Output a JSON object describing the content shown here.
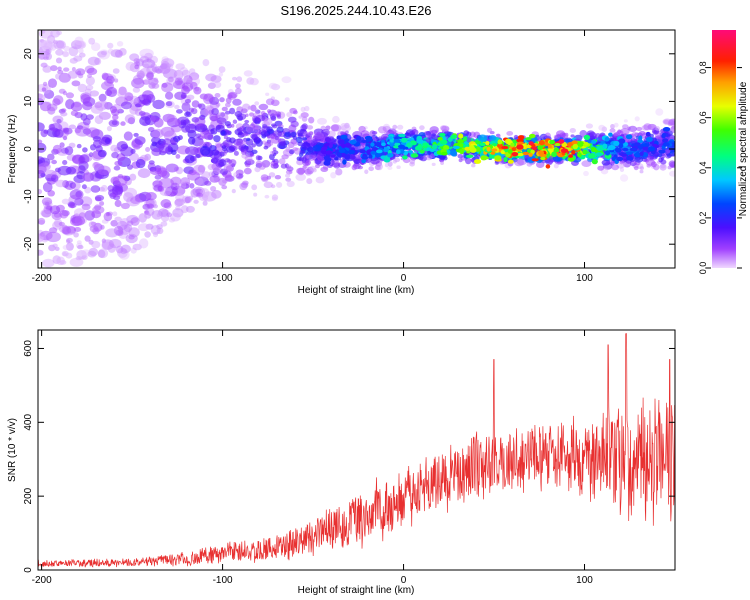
{
  "title": "S196.2025.244.10.43.E26",
  "colors": {
    "snr_line": "#e83030",
    "scatter_low": "#6a0dff",
    "axis": "#000000"
  },
  "chart_data": [
    {
      "type": "heatmap",
      "title": "S196.2025.244.10.43.E26",
      "xlabel": "Height of straight line (km)",
      "ylabel": "Frequency (Hz)",
      "xlim": [
        -202,
        150
      ],
      "ylim": [
        -25,
        25
      ],
      "xticks": [
        -200,
        -100,
        0,
        100
      ],
      "xtick_labels": [
        "-200",
        "-100",
        "0",
        "100"
      ],
      "yticks": [
        -20,
        -10,
        0,
        10,
        20
      ],
      "ytick_labels": [
        "-20",
        "-10",
        "0",
        "10",
        "20"
      ],
      "colorbar": {
        "label": "Normalized spectral amplitude",
        "range": [
          0,
          0.95
        ],
        "ticks": [
          0,
          0.2,
          0.4,
          0.6,
          0.8
        ],
        "tick_labels": [
          "0.0",
          "0.2",
          "0.4",
          "0.6",
          "0.8"
        ],
        "colormap": "rainbow (purple-blue-cyan-green-yellow-red-magenta)"
      },
      "band_profile": [
        {
          "x": -200,
          "center": 0,
          "halfwidth": 25,
          "amplitude": 0.12
        },
        {
          "x": -150,
          "center": 0,
          "halfwidth": 22,
          "amplitude": 0.14
        },
        {
          "x": -120,
          "center": 2,
          "halfwidth": 15,
          "amplitude": 0.16
        },
        {
          "x": -100,
          "center": 2,
          "halfwidth": 12,
          "amplitude": 0.18
        },
        {
          "x": -70,
          "center": 2,
          "halfwidth": 10,
          "amplitude": 0.18
        },
        {
          "x": -45,
          "center": 0,
          "halfwidth": 5,
          "amplitude": 0.22
        },
        {
          "x": -20,
          "center": 0,
          "halfwidth": 4,
          "amplitude": 0.28
        },
        {
          "x": 0,
          "center": 1,
          "halfwidth": 3,
          "amplitude": 0.4
        },
        {
          "x": 30,
          "center": 0.5,
          "halfwidth": 3,
          "amplitude": 0.55
        },
        {
          "x": 60,
          "center": 0,
          "halfwidth": 2.5,
          "amplitude": 0.8
        },
        {
          "x": 90,
          "center": 0,
          "halfwidth": 2.5,
          "amplitude": 0.8
        },
        {
          "x": 120,
          "center": 0,
          "halfwidth": 4,
          "amplitude": 0.3
        },
        {
          "x": 150,
          "center": 1,
          "halfwidth": 5,
          "amplitude": 0.25
        }
      ]
    },
    {
      "type": "line",
      "xlabel": "Height of straight line (km)",
      "ylabel": "SNR (10 * v/v)",
      "xlim": [
        -202,
        150
      ],
      "ylim": [
        0,
        650
      ],
      "xticks": [
        -200,
        -100,
        0,
        100
      ],
      "xtick_labels": [
        "-200",
        "-100",
        "0",
        "100"
      ],
      "yticks": [
        0,
        200,
        400,
        600
      ],
      "ytick_labels": [
        "0",
        "200",
        "400",
        "600"
      ],
      "series": [
        {
          "name": "SNR",
          "envelope": [
            {
              "x": -202,
              "mean": 18,
              "spread": 10
            },
            {
              "x": -150,
              "mean": 20,
              "spread": 12
            },
            {
              "x": -120,
              "mean": 30,
              "spread": 20
            },
            {
              "x": -100,
              "mean": 45,
              "spread": 30
            },
            {
              "x": -80,
              "mean": 55,
              "spread": 35
            },
            {
              "x": -60,
              "mean": 70,
              "spread": 45
            },
            {
              "x": -40,
              "mean": 110,
              "spread": 70
            },
            {
              "x": -20,
              "mean": 150,
              "spread": 90
            },
            {
              "x": 0,
              "mean": 190,
              "spread": 80
            },
            {
              "x": 20,
              "mean": 240,
              "spread": 90
            },
            {
              "x": 40,
              "mean": 280,
              "spread": 100
            },
            {
              "x": 60,
              "mean": 300,
              "spread": 90
            },
            {
              "x": 80,
              "mean": 310,
              "spread": 100
            },
            {
              "x": 100,
              "mean": 300,
              "spread": 120
            },
            {
              "x": 120,
              "mean": 310,
              "spread": 160
            },
            {
              "x": 140,
              "mean": 300,
              "spread": 190
            },
            {
              "x": 150,
              "mean": 300,
              "spread": 200
            }
          ],
          "peaks": [
            {
              "x": 50,
              "y": 570
            },
            {
              "x": 113,
              "y": 610
            },
            {
              "x": 123,
              "y": 640
            },
            {
              "x": 147,
              "y": 570
            }
          ]
        }
      ]
    }
  ]
}
